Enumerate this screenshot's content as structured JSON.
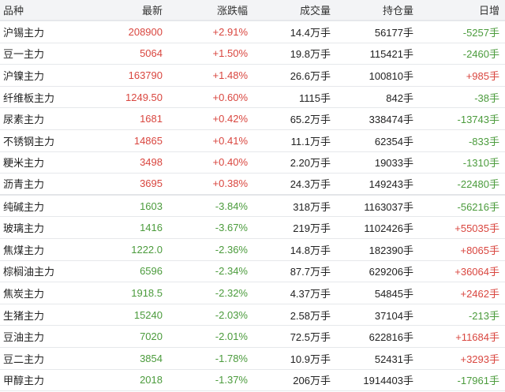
{
  "colors": {
    "up": "#d9463f",
    "down": "#4b9b3c"
  },
  "headers": [
    "品种",
    "最新",
    "涨跌幅",
    "成交量",
    "持仓量",
    "日增"
  ],
  "rows": [
    {
      "name": "沪锡主力",
      "price": "208900",
      "change": "+2.91%",
      "volume": "14.4万手",
      "oi": "56177手",
      "daily": "-5257手"
    },
    {
      "name": "豆一主力",
      "price": "5064",
      "change": "+1.50%",
      "volume": "19.8万手",
      "oi": "115421手",
      "daily": "-2460手"
    },
    {
      "name": "沪镍主力",
      "price": "163790",
      "change": "+1.48%",
      "volume": "26.6万手",
      "oi": "100810手",
      "daily": "+985手"
    },
    {
      "name": "纤维板主力",
      "price": "1249.50",
      "change": "+0.60%",
      "volume": "1115手",
      "oi": "842手",
      "daily": "-38手"
    },
    {
      "name": "尿素主力",
      "price": "1681",
      "change": "+0.42%",
      "volume": "65.2万手",
      "oi": "338474手",
      "daily": "-13743手"
    },
    {
      "name": "不锈钢主力",
      "price": "14865",
      "change": "+0.41%",
      "volume": "11.1万手",
      "oi": "62354手",
      "daily": "-833手"
    },
    {
      "name": "粳米主力",
      "price": "3498",
      "change": "+0.40%",
      "volume": "2.20万手",
      "oi": "19033手",
      "daily": "-1310手"
    },
    {
      "name": "沥青主力",
      "price": "3695",
      "change": "+0.38%",
      "volume": "24.3万手",
      "oi": "149243手",
      "daily": "-22480手"
    },
    {
      "name": "纯碱主力",
      "price": "1603",
      "change": "-3.84%",
      "volume": "318万手",
      "oi": "1163037手",
      "daily": "-56216手"
    },
    {
      "name": "玻璃主力",
      "price": "1416",
      "change": "-3.67%",
      "volume": "219万手",
      "oi": "1102426手",
      "daily": "+55035手"
    },
    {
      "name": "焦煤主力",
      "price": "1222.0",
      "change": "-2.36%",
      "volume": "14.8万手",
      "oi": "182390手",
      "daily": "+8065手"
    },
    {
      "name": "棕榈油主力",
      "price": "6596",
      "change": "-2.34%",
      "volume": "87.7万手",
      "oi": "629206手",
      "daily": "+36064手"
    },
    {
      "name": "焦炭主力",
      "price": "1918.5",
      "change": "-2.32%",
      "volume": "4.37万手",
      "oi": "54845手",
      "daily": "+2462手"
    },
    {
      "name": "生猪主力",
      "price": "15240",
      "change": "-2.03%",
      "volume": "2.58万手",
      "oi": "37104手",
      "daily": "-213手"
    },
    {
      "name": "豆油主力",
      "price": "7020",
      "change": "-2.01%",
      "volume": "72.5万手",
      "oi": "622816手",
      "daily": "+11684手"
    },
    {
      "name": "豆二主力",
      "price": "3854",
      "change": "-1.78%",
      "volume": "10.9万手",
      "oi": "52431手",
      "daily": "+3293手"
    },
    {
      "name": "甲醇主力",
      "price": "2018",
      "change": "-1.37%",
      "volume": "206万手",
      "oi": "1914403手",
      "daily": "-17961手"
    }
  ]
}
